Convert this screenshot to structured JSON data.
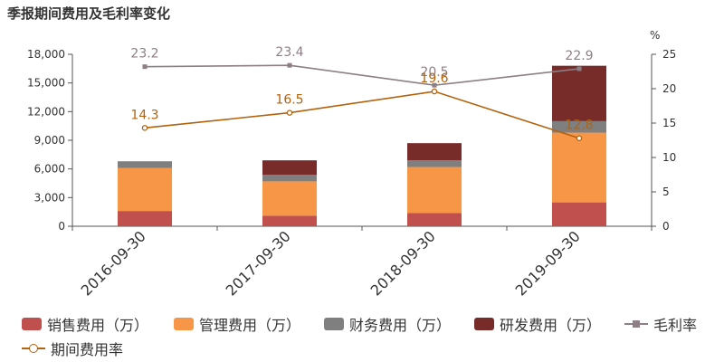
{
  "title": "季报期间费用及毛利率变化",
  "colors": {
    "sales": "#c0504d",
    "admin": "#f79646",
    "finance": "#7f7f7f",
    "rnd": "#772c2a",
    "gross": "#8c7f86",
    "period": "#b3620d"
  },
  "chart_data": {
    "type": "bar",
    "stacked": true,
    "categories": [
      "2016-09-30",
      "2017-09-30",
      "2018-09-30",
      "2019-09-30"
    ],
    "y_left": {
      "min": 0,
      "max": 18000,
      "ticks": [
        "0",
        "3,000",
        "6,000",
        "9,000",
        "12,000",
        "15,000",
        "18,000"
      ]
    },
    "y_right": {
      "min": 0,
      "max": 25,
      "unit": "%",
      "ticks": [
        "0",
        "5",
        "10",
        "15",
        "20",
        "25"
      ]
    },
    "series": [
      {
        "name": "销售费用（万）",
        "key": "sales",
        "values": [
          1600,
          1100,
          1400,
          2500
        ]
      },
      {
        "name": "管理费用（万）",
        "key": "admin",
        "values": [
          4500,
          3600,
          4800,
          7300
        ]
      },
      {
        "name": "财务费用（万）",
        "key": "finance",
        "values": [
          700,
          700,
          700,
          1200
        ]
      },
      {
        "name": "研发费用（万）",
        "key": "rnd",
        "values": [
          0,
          1500,
          1800,
          5800
        ]
      }
    ],
    "lines": [
      {
        "name": "毛利率",
        "key": "gross",
        "marker": "square",
        "values": [
          23.2,
          23.4,
          20.5,
          22.9
        ],
        "labels": [
          "23.2",
          "23.4",
          "20.5",
          "22.9"
        ]
      },
      {
        "name": "期间费用率",
        "key": "period",
        "marker": "circle",
        "values": [
          14.3,
          16.5,
          19.6,
          12.8
        ],
        "labels": [
          "14.3",
          "16.5",
          "19.6",
          "12.8"
        ]
      }
    ]
  }
}
